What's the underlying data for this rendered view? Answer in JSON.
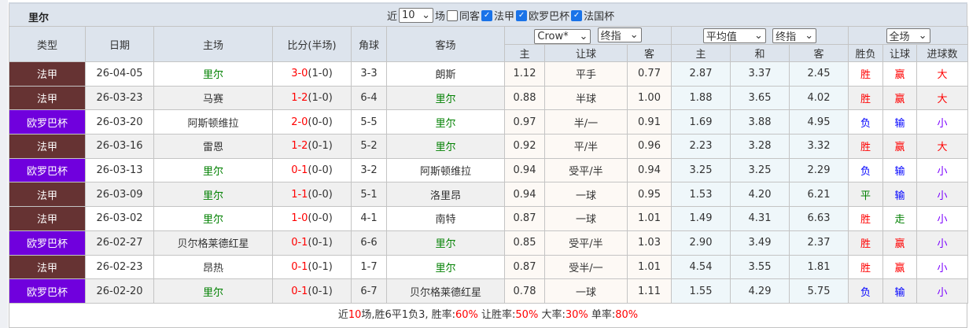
{
  "team": "里尔",
  "filters": {
    "recent_label": "近",
    "recent_value": "10",
    "unit": "场",
    "same_away": "同客",
    "same_away_checked": false,
    "leagues": [
      {
        "label": "法甲",
        "checked": true
      },
      {
        "label": "欧罗巴杯",
        "checked": true
      },
      {
        "label": "法国杯",
        "checked": true
      }
    ]
  },
  "header": {
    "type": "类型",
    "date": "日期",
    "home": "主场",
    "score": "比分(半场)",
    "corner": "角球",
    "away": "客场",
    "bookmaker": "Crow*",
    "odds_kind1": "终指",
    "avg": "平均值",
    "odds_kind2": "终指",
    "period": "全场",
    "h_home": "主",
    "h_line": "让球",
    "h_away": "客",
    "e_home": "主",
    "e_draw": "和",
    "e_away": "客",
    "r_wl": "胜负",
    "r_ah": "让球",
    "r_ou": "进球数"
  },
  "colors": {
    "法甲": "#663333",
    "欧罗巴杯": "#7000dd",
    "team": "#008000",
    "win": "#ff0000",
    "lose": "#0000ff"
  },
  "rows": [
    {
      "type": "法甲",
      "date": "26-04-05",
      "home": "里尔",
      "score": "3-0",
      "half": "(1-0)",
      "corner": "3-3",
      "away": "朗斯",
      "ah_h": "1.12",
      "ah": "平手",
      "ah_a": "0.77",
      "eh": "2.87",
      "ed": "3.37",
      "ea": "2.45",
      "wl": "胜",
      "ahr": "赢",
      "ou": "大"
    },
    {
      "type": "法甲",
      "date": "26-03-23",
      "home": "马赛",
      "score": "1-2",
      "half": "(1-0)",
      "corner": "6-4",
      "away": "里尔",
      "ah_h": "0.88",
      "ah": "半球",
      "ah_a": "1.00",
      "eh": "1.88",
      "ed": "3.65",
      "ea": "4.02",
      "wl": "胜",
      "ahr": "赢",
      "ou": "大"
    },
    {
      "type": "欧罗巴杯",
      "date": "26-03-20",
      "home": "阿斯顿维拉",
      "score": "2-0",
      "half": "(0-0)",
      "corner": "5-5",
      "away": "里尔",
      "ah_h": "0.97",
      "ah": "半/一",
      "ah_a": "0.91",
      "eh": "1.69",
      "ed": "3.88",
      "ea": "4.95",
      "wl": "负",
      "ahr": "输",
      "ou": "小"
    },
    {
      "type": "法甲",
      "date": "26-03-16",
      "home": "雷恩",
      "score": "1-2",
      "half": "(0-1)",
      "corner": "5-2",
      "away": "里尔",
      "ah_h": "0.92",
      "ah": "平/半",
      "ah_a": "0.96",
      "eh": "2.23",
      "ed": "3.28",
      "ea": "3.32",
      "wl": "胜",
      "ahr": "赢",
      "ou": "大"
    },
    {
      "type": "欧罗巴杯",
      "date": "26-03-13",
      "home": "里尔",
      "score": "0-1",
      "half": "(0-0)",
      "corner": "3-2",
      "away": "阿斯顿维拉",
      "ah_h": "0.94",
      "ah": "受平/半",
      "ah_a": "0.94",
      "eh": "3.25",
      "ed": "3.25",
      "ea": "2.29",
      "wl": "负",
      "ahr": "输",
      "ou": "小"
    },
    {
      "type": "法甲",
      "date": "26-03-09",
      "home": "里尔",
      "score": "1-1",
      "half": "(0-0)",
      "corner": "5-1",
      "away": "洛里昂",
      "ah_h": "0.94",
      "ah": "一球",
      "ah_a": "0.95",
      "eh": "1.53",
      "ed": "4.20",
      "ea": "6.21",
      "wl": "平",
      "ahr": "输",
      "ou": "小"
    },
    {
      "type": "法甲",
      "date": "26-03-02",
      "home": "里尔",
      "score": "1-0",
      "half": "(0-0)",
      "corner": "4-1",
      "away": "南特",
      "ah_h": "0.87",
      "ah": "一球",
      "ah_a": "1.01",
      "eh": "1.49",
      "ed": "4.31",
      "ea": "6.63",
      "wl": "胜",
      "ahr": "走",
      "ou": "小"
    },
    {
      "type": "欧罗巴杯",
      "date": "26-02-27",
      "home": "贝尔格莱德红星",
      "score": "0-1",
      "half": "(0-1)",
      "corner": "6-6",
      "away": "里尔",
      "ah_h": "0.85",
      "ah": "受平/半",
      "ah_a": "1.03",
      "eh": "2.90",
      "ed": "3.49",
      "ea": "2.37",
      "wl": "胜",
      "ahr": "赢",
      "ou": "小"
    },
    {
      "type": "法甲",
      "date": "26-02-23",
      "home": "昂热",
      "score": "0-1",
      "half": "(0-1)",
      "corner": "1-7",
      "away": "里尔",
      "ah_h": "0.87",
      "ah": "受半/一",
      "ah_a": "1.01",
      "eh": "4.54",
      "ed": "3.55",
      "ea": "1.81",
      "wl": "胜",
      "ahr": "赢",
      "ou": "小"
    },
    {
      "type": "欧罗巴杯",
      "date": "26-02-20",
      "home": "里尔",
      "score": "0-1",
      "half": "(0-1)",
      "corner": "6-7",
      "away": "贝尔格莱德红星",
      "ah_h": "0.78",
      "ah": "一球",
      "ah_a": "1.11",
      "eh": "1.55",
      "ed": "4.29",
      "ea": "5.75",
      "wl": "负",
      "ahr": "输",
      "ou": "小"
    }
  ],
  "summary": {
    "p1": "近",
    "n": "10",
    "p2": "场,胜6平1负3, 胜率:",
    "win_rate": "60%",
    "p3": " 让胜率:",
    "ah_rate": "50%",
    "p4": " 大率:",
    "over_rate": "30%",
    "p5": " 单率:",
    "odd_rate": "80%"
  }
}
